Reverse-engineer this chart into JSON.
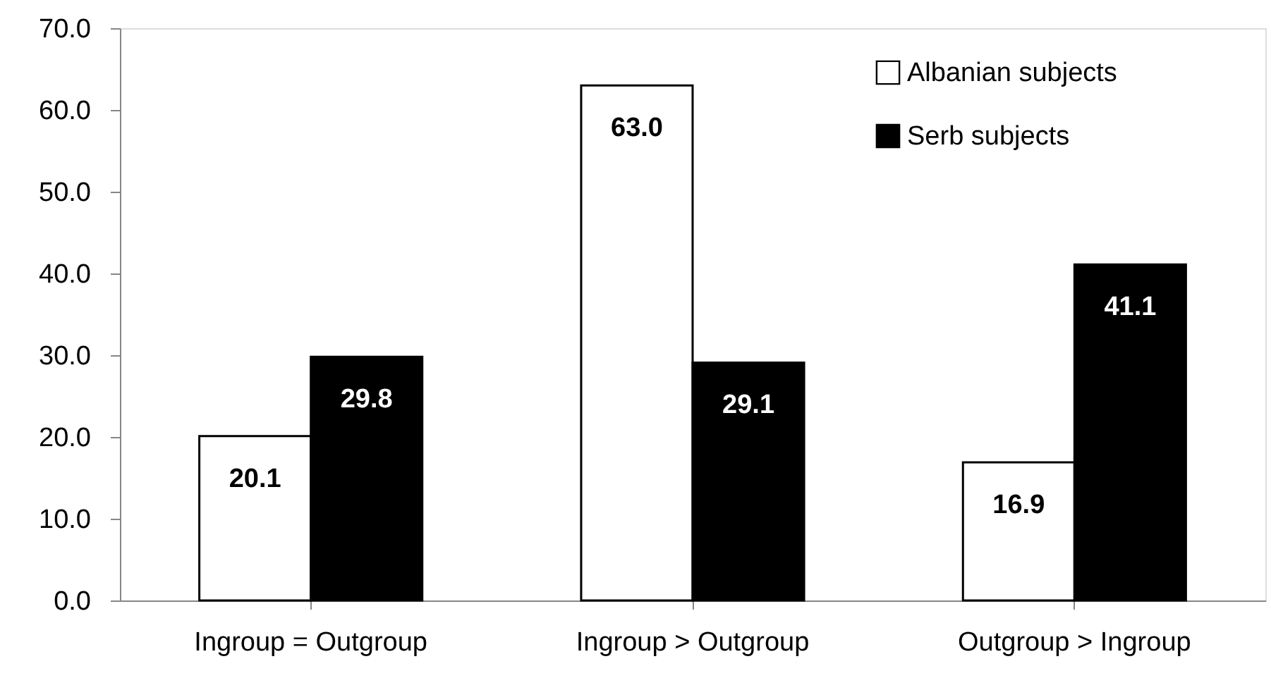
{
  "chart_data": {
    "type": "bar",
    "categories": [
      "Ingroup = Outgroup",
      "Ingroup > Outgroup",
      "Outgroup > Ingroup"
    ],
    "series": [
      {
        "name": "Albanian subjects",
        "color": "#ffffff",
        "values": [
          20.1,
          63.0,
          16.9
        ],
        "value_labels": [
          "20.1",
          "63.0",
          "16.9"
        ]
      },
      {
        "name": "Serb subjects",
        "color": "#000000",
        "values": [
          29.8,
          29.1,
          41.1
        ],
        "value_labels": [
          "29.8",
          "29.1",
          "41.1"
        ]
      }
    ],
    "ylim": [
      0,
      70
    ],
    "yticks": [
      {
        "value": 0,
        "label": "0.0"
      },
      {
        "value": 10,
        "label": "10.0"
      },
      {
        "value": 20,
        "label": "20.0"
      },
      {
        "value": 30,
        "label": "30.0"
      },
      {
        "value": 40,
        "label": "40.0"
      },
      {
        "value": 50,
        "label": "50.0"
      },
      {
        "value": 60,
        "label": "60.0"
      },
      {
        "value": 70,
        "label": "70.0"
      }
    ],
    "grid": false,
    "legend": "top right"
  }
}
